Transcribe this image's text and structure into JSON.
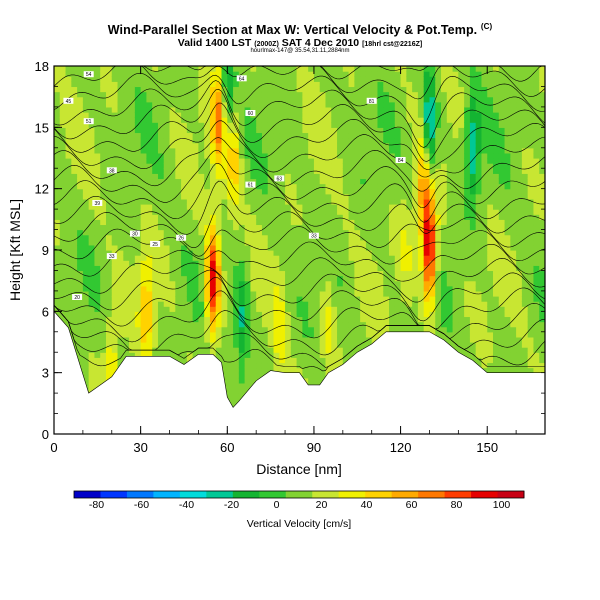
{
  "header": {
    "title": "Wind-Parallel Section at Max W: Vertical Velocity & Pot.Temp.",
    "title_mark": "(C)",
    "valid_prefix": "Valid 1400 LST",
    "valid_small": "(2000Z)",
    "valid_rest": "SAT 4 Dec 2010",
    "valid_small2": "[18hrl cst@2216Z]",
    "sub": "hourlmax-147@ 35.54,31.11,2884nm"
  },
  "chart_data": {
    "type": "heatmap",
    "xlabel": "Distance [nm]",
    "ylabel": "Height [Kft MSL]",
    "xlim": [
      0,
      170
    ],
    "ylim": [
      0,
      18
    ],
    "x_ticks": [
      0,
      30,
      60,
      90,
      120,
      150
    ],
    "y_ticks": [
      0,
      3,
      6,
      9,
      12,
      15,
      18
    ],
    "colorbar": {
      "label": "Vertical Velocity [cm/s]",
      "ticks": [
        -80,
        -60,
        -40,
        -20,
        0,
        20,
        40,
        60,
        80,
        100
      ],
      "range": [
        -90,
        110
      ],
      "colors": [
        "#0000c8",
        "#0036ff",
        "#0078ff",
        "#00b4ff",
        "#00dcdc",
        "#00c896",
        "#14b432",
        "#32c832",
        "#82d232",
        "#c8e632",
        "#f0f000",
        "#ffd200",
        "#ffaa00",
        "#ff7800",
        "#ff3c00",
        "#e60000",
        "#c80014"
      ]
    },
    "terrain": [
      [
        0,
        6
      ],
      [
        5,
        5.2
      ],
      [
        12,
        2
      ],
      [
        20,
        2.8
      ],
      [
        25,
        3.8
      ],
      [
        30,
        3.8
      ],
      [
        40,
        3.8
      ],
      [
        45,
        3.4
      ],
      [
        50,
        3.9
      ],
      [
        55,
        3.9
      ],
      [
        58,
        3.5
      ],
      [
        60,
        1.8
      ],
      [
        62,
        1.3
      ],
      [
        64,
        1.6
      ],
      [
        70,
        2.6
      ],
      [
        75,
        3.1
      ],
      [
        80,
        3.0
      ],
      [
        85,
        3.0
      ],
      [
        88,
        2.4
      ],
      [
        92,
        2.4
      ],
      [
        95,
        3.0
      ],
      [
        100,
        3.4
      ],
      [
        105,
        4.0
      ],
      [
        110,
        4.4
      ],
      [
        115,
        5.0
      ],
      [
        120,
        5.0
      ],
      [
        130,
        5.0
      ],
      [
        135,
        4.6
      ],
      [
        140,
        4.0
      ],
      [
        145,
        3.6
      ],
      [
        150,
        3.0
      ],
      [
        160,
        3.0
      ],
      [
        165,
        3.0
      ],
      [
        170,
        3.0
      ]
    ],
    "velocity_features": [
      {
        "x": 55,
        "y": 7.5,
        "value": 100
      },
      {
        "x": 57,
        "y": 15.5,
        "value": 70
      },
      {
        "x": 62,
        "y": 13.5,
        "value": 50
      },
      {
        "x": 130,
        "y": 9.0,
        "value": 105
      },
      {
        "x": 128,
        "y": 12.0,
        "value": 60
      },
      {
        "x": 32,
        "y": 6.0,
        "value": 50
      },
      {
        "x": 20,
        "y": 3.5,
        "value": 40
      },
      {
        "x": 78,
        "y": 5.0,
        "value": 35
      },
      {
        "x": 95,
        "y": 5.5,
        "value": 35
      },
      {
        "x": 122,
        "y": 9.0,
        "value": 30
      },
      {
        "x": 60,
        "y": 17.0,
        "value": -20
      },
      {
        "x": 130,
        "y": 15.0,
        "value": -40
      },
      {
        "x": 145,
        "y": 14.0,
        "value": -25
      },
      {
        "x": 65,
        "y": 5.5,
        "value": -20
      }
    ],
    "theta_levels": [
      290,
      292,
      294,
      296,
      298,
      300,
      302,
      304,
      306,
      308,
      310,
      312,
      314,
      316,
      318,
      320,
      322,
      324,
      326,
      328,
      330
    ],
    "contour_labels": [
      "54",
      "45",
      "51",
      "38",
      "39",
      "30",
      "33",
      "25",
      "20",
      "64",
      "60",
      "61",
      "63",
      "81",
      "84",
      "26",
      "33"
    ]
  }
}
